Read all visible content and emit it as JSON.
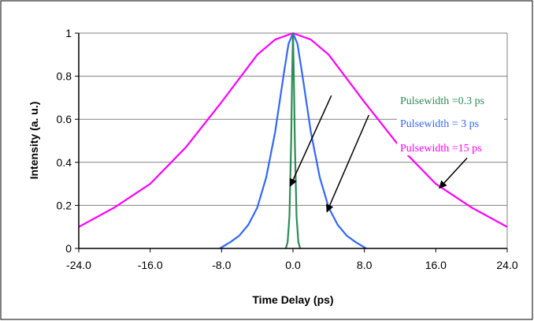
{
  "chart_data": {
    "type": "line",
    "xlabel": "Time Delay (ps)",
    "ylabel": "Intensity (a. u.)",
    "xlim": [
      -24,
      24
    ],
    "ylim": [
      0,
      1
    ],
    "x_ticks": [
      -24,
      -16,
      -8,
      0,
      8,
      16,
      24
    ],
    "x_tick_labels": [
      "-24.0",
      "-16.0",
      "-8.0",
      "0.0",
      "8.0",
      "16.0",
      "24.0"
    ],
    "y_ticks": [
      0,
      0.2,
      0.4,
      0.6,
      0.8,
      1
    ],
    "y_tick_labels": [
      "0",
      "0.2",
      "0.4",
      "0.6",
      "0.8",
      "1"
    ],
    "grid": "horizontal",
    "series": [
      {
        "name": "Pulsewidth =15 ps",
        "color": "#ff00ff",
        "points": [
          [
            -24,
            0.1
          ],
          [
            -20,
            0.19
          ],
          [
            -16,
            0.3
          ],
          [
            -12,
            0.47
          ],
          [
            -8,
            0.68
          ],
          [
            -4,
            0.9
          ],
          [
            -2,
            0.97
          ],
          [
            0,
            1.0
          ],
          [
            2,
            0.97
          ],
          [
            4,
            0.9
          ],
          [
            8,
            0.68
          ],
          [
            12,
            0.47
          ],
          [
            16,
            0.3
          ],
          [
            20,
            0.19
          ],
          [
            24,
            0.1
          ]
        ]
      },
      {
        "name": "Pulsewidth = 3 ps",
        "color": "#3366ff",
        "points": [
          [
            -8.2,
            0.0
          ],
          [
            -7,
            0.03
          ],
          [
            -6,
            0.06
          ],
          [
            -5,
            0.11
          ],
          [
            -4,
            0.19
          ],
          [
            -3,
            0.33
          ],
          [
            -2,
            0.54
          ],
          [
            -1,
            0.82
          ],
          [
            -0.5,
            0.95
          ],
          [
            0,
            1.0
          ],
          [
            0.5,
            0.95
          ],
          [
            1,
            0.82
          ],
          [
            2,
            0.54
          ],
          [
            3,
            0.33
          ],
          [
            4,
            0.19
          ],
          [
            5,
            0.11
          ],
          [
            6,
            0.06
          ],
          [
            7,
            0.03
          ],
          [
            8.2,
            0.0
          ]
        ]
      },
      {
        "name": "Pulsewidth =0.3 ps",
        "color": "#2e8b57",
        "points": [
          [
            -0.8,
            0.0
          ],
          [
            -0.6,
            0.03
          ],
          [
            -0.4,
            0.15
          ],
          [
            -0.2,
            0.5
          ],
          [
            -0.1,
            0.8
          ],
          [
            0,
            1.0
          ],
          [
            0.1,
            0.8
          ],
          [
            0.2,
            0.5
          ],
          [
            0.4,
            0.15
          ],
          [
            0.6,
            0.03
          ],
          [
            0.8,
            0.0
          ]
        ]
      }
    ],
    "annotations": [
      {
        "text": "Pulsewidth =0.3 ps",
        "color": "#2e8b57",
        "arrow_from": [
          4.3,
          0.71
        ],
        "arrow_to": [
          -0.3,
          0.29
        ]
      },
      {
        "text": "Pulsewidth = 3 ps",
        "color": "#3366ff",
        "arrow_from": [
          8.5,
          0.62
        ],
        "arrow_to": [
          3.8,
          0.17
        ]
      },
      {
        "text": "Pulsewidth =15 ps",
        "color": "#ff00ff",
        "arrow_from": [
          19.5,
          0.42
        ],
        "arrow_to": [
          16.4,
          0.28
        ]
      }
    ]
  }
}
